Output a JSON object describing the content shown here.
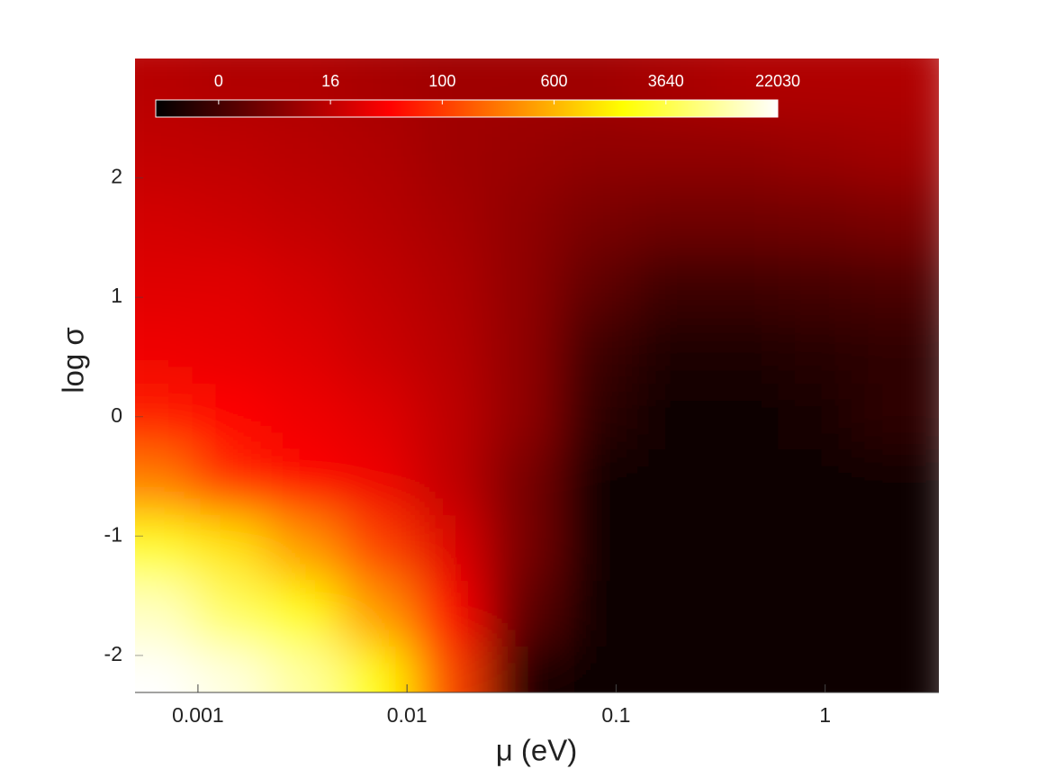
{
  "chart_data": {
    "type": "heatmap",
    "x_label": "μ (eV)",
    "y_label": "log σ",
    "x_scale": "log",
    "x": [
      0.00063,
      0.0014,
      0.0032,
      0.0071,
      0.016,
      0.035,
      0.079,
      0.18,
      0.4,
      0.89,
      2.0
    ],
    "y": [
      2.75,
      2.2,
      1.65,
      1.1,
      0.55,
      0,
      -0.55,
      -1.1,
      -1.65,
      -2.2
    ],
    "z": [
      [
        15,
        14,
        14,
        13,
        12,
        12,
        12,
        13,
        14,
        14,
        14
      ],
      [
        18,
        16,
        15,
        14,
        12,
        11,
        10,
        10,
        10,
        11,
        12
      ],
      [
        30,
        25,
        18,
        15,
        13,
        10,
        7,
        5.5,
        5.5,
        6,
        7
      ],
      [
        39,
        39,
        30,
        18,
        14,
        10,
        3.5,
        -1,
        -1,
        0,
        1
      ],
      [
        50,
        45,
        39,
        25,
        15,
        10,
        -1,
        -5,
        -5,
        -4,
        -3
      ],
      [
        80,
        60,
        50,
        39,
        16,
        10,
        -3,
        -7,
        -7,
        -6,
        -3
      ],
      [
        378,
        90,
        60,
        50,
        18,
        7,
        -7,
        -8,
        -8,
        -8,
        -8
      ],
      [
        3000,
        1800,
        489,
        130,
        39,
        7,
        -8,
        -8,
        -8,
        -8,
        -8
      ],
      [
        15900,
        6300,
        2460,
        489,
        60,
        3.5,
        -8,
        -8,
        -8,
        -8,
        -8
      ],
      [
        22030,
        19000,
        12600,
        2460,
        130,
        -5,
        -8,
        -8,
        -8,
        -8,
        -8
      ]
    ],
    "xlim": [
      0.0005,
      3.5
    ],
    "ylim": [
      -2.31,
      3
    ],
    "xticks": [
      0.001,
      0.01,
      0.1,
      1
    ],
    "yticks": [
      -2,
      -1,
      0,
      1,
      2
    ],
    "colormap": "hot",
    "clim": [
      -9,
      22030
    ],
    "cticks": [
      0,
      16,
      100,
      600,
      3640,
      22030
    ]
  }
}
